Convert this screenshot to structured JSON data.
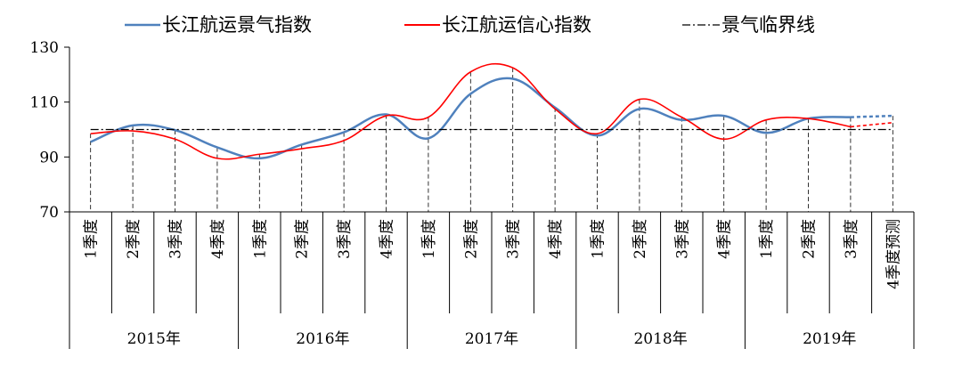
{
  "chart_data": {
    "type": "line",
    "categories": [
      "1季度",
      "2季度",
      "3季度",
      "4季度",
      "1季度",
      "2季度",
      "3季度",
      "4季度",
      "1季度",
      "2季度",
      "3季度",
      "4季度",
      "1季度",
      "2季度",
      "3季度",
      "4季度",
      "1季度",
      "2季度",
      "3季度",
      "4季度预测"
    ],
    "years": [
      "2015年",
      "2016年",
      "2017年",
      "2018年",
      "2019年"
    ],
    "ylim": [
      70,
      130
    ],
    "yticks": [
      70,
      90,
      110,
      130
    ],
    "grid": false,
    "legend_position": "top",
    "series": [
      {
        "name": "长江航运景气指数",
        "color": "#4f81bd",
        "values": [
          95.5,
          101.5,
          99.8,
          93.5,
          89.5,
          94.5,
          99.0,
          105.5,
          96.8,
          113.0,
          118.5,
          108.0,
          97.8,
          107.5,
          103.5,
          105.0,
          98.8,
          104.0,
          104.5,
          105.0
        ],
        "forecast_last": true
      },
      {
        "name": "长江航运信心指数",
        "color": "#ff0000",
        "values": [
          98.5,
          99.5,
          96.5,
          89.5,
          91.0,
          93.0,
          96.0,
          105.0,
          104.5,
          121.0,
          122.5,
          107.5,
          98.5,
          111.0,
          104.5,
          96.5,
          103.5,
          104.0,
          101.0,
          102.5
        ],
        "forecast_last": true
      },
      {
        "name": "景气临界线",
        "color": "#000000",
        "values": [
          100,
          100,
          100,
          100,
          100,
          100,
          100,
          100,
          100,
          100,
          100,
          100,
          100,
          100,
          100,
          100,
          100,
          100,
          100,
          100
        ],
        "style": "dash-dot"
      }
    ]
  }
}
